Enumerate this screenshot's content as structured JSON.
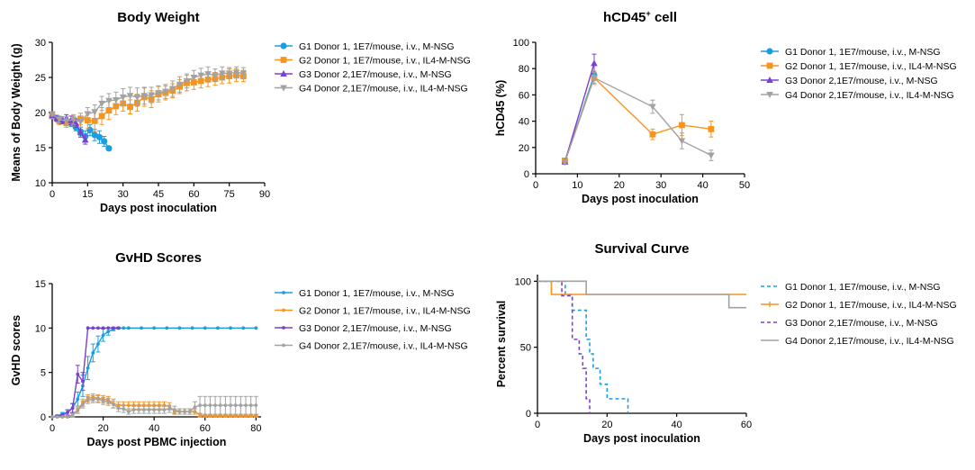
{
  "colors": {
    "G1": "#1a9ee0",
    "G2": "#f7941d",
    "G3": "#7b3fd3",
    "G4": "#a2a2a2"
  },
  "chart_data": [
    {
      "id": "bw",
      "type": "line",
      "title": "Body Weight",
      "xlabel": "Days post inoculation",
      "ylabel": "Means of Body Weight (g)",
      "xlim": [
        0,
        90
      ],
      "ylim": [
        10,
        30
      ],
      "xticks": [
        0,
        15,
        30,
        45,
        60,
        75,
        90
      ],
      "yticks": [
        10,
        15,
        20,
        25,
        30
      ],
      "legend_position": "right",
      "series": [
        {
          "key": "G1",
          "name": "G1 Donor 1, 1E7/mouse, i.v., M-NSG",
          "marker": "circle",
          "style": "solid",
          "x": [
            0,
            2,
            4,
            6,
            8,
            10,
            12,
            14,
            16,
            18,
            20,
            22,
            24
          ],
          "y": [
            19.5,
            19.1,
            18.9,
            18.6,
            18.5,
            17.9,
            17.3,
            16.6,
            17.5,
            16.8,
            16.5,
            15.9,
            14.9
          ],
          "err": [
            0.4,
            0.4,
            0.5,
            0.4,
            0.5,
            0.5,
            0.6,
            0.8,
            0.8,
            0.8,
            0.9,
            0.7,
            0.3
          ]
        },
        {
          "key": "G2",
          "name": "G2 Donor 1, 1E7/mouse, i.v., IL4-M-NSG",
          "marker": "square",
          "style": "solid",
          "x": [
            0,
            3,
            6,
            9,
            12,
            15,
            18,
            21,
            24,
            27,
            30,
            33,
            36,
            39,
            42,
            45,
            48,
            51,
            54,
            57,
            60,
            63,
            66,
            69,
            72,
            75,
            78,
            81
          ],
          "y": [
            19.5,
            18.8,
            18.5,
            18.8,
            19.1,
            18.9,
            18.8,
            19.5,
            20.3,
            20.9,
            21.3,
            20.8,
            21.4,
            22.2,
            21.9,
            22.6,
            22.8,
            23.1,
            23.7,
            24.2,
            24.3,
            24.5,
            24.7,
            24.8,
            25.0,
            25.2,
            25.3,
            25.2
          ],
          "err": [
            0.3,
            0.5,
            0.6,
            0.7,
            0.8,
            1.2,
            1.5,
            1.2,
            1.3,
            1.2,
            1.1,
            1.0,
            1.2,
            1.3,
            1.2,
            1.1,
            1.0,
            1.0,
            1.0,
            1.1,
            1.0,
            1.0,
            1.0,
            0.9,
            0.9,
            1.0,
            0.9,
            0.8
          ]
        },
        {
          "key": "G3",
          "name": "G3 Donor 2,1E7/mouse, i.v., M-NSG",
          "marker": "triangle",
          "style": "solid",
          "x": [
            0,
            2,
            4,
            6,
            8,
            10,
            12,
            14
          ],
          "y": [
            19.6,
            19.2,
            18.8,
            19.2,
            18.9,
            18.5,
            17.2,
            16.1
          ],
          "err": [
            0.3,
            0.4,
            0.4,
            0.5,
            0.6,
            0.6,
            0.7,
            0.6
          ]
        },
        {
          "key": "G4",
          "name": "G4 Donor 2,1E7/mouse, i.v., IL4-M-NSG",
          "marker": "triangle-down",
          "style": "solid",
          "x": [
            0,
            3,
            6,
            9,
            12,
            15,
            18,
            21,
            24,
            27,
            30,
            33,
            36,
            39,
            42,
            45,
            48,
            51,
            54,
            57,
            60,
            63,
            66,
            69,
            72,
            75,
            78,
            81
          ],
          "y": [
            19.8,
            19.0,
            18.8,
            19.0,
            18.7,
            19.8,
            20.1,
            21.3,
            21.7,
            21.8,
            22.2,
            22.4,
            22.2,
            22.4,
            22.5,
            22.8,
            23.0,
            23.4,
            24.0,
            24.5,
            25.0,
            25.3,
            25.5,
            25.3,
            25.6,
            25.6,
            25.7,
            25.6
          ],
          "err": [
            0.3,
            0.5,
            0.6,
            0.7,
            0.8,
            0.9,
            1.0,
            1.0,
            1.0,
            1.1,
            1.2,
            1.2,
            1.3,
            1.2,
            1.1,
            1.0,
            1.0,
            1.1,
            1.1,
            1.0,
            1.0,
            1.0,
            1.0,
            0.9,
            0.9,
            0.8,
            0.8,
            0.8
          ]
        }
      ]
    },
    {
      "id": "hcd",
      "type": "line",
      "title": "hCD45",
      "title_sup": "+",
      "title_suffix": " cell",
      "xlabel": "Days post inoculation",
      "ylabel": "hCD45 (%)",
      "xlim": [
        0,
        50
      ],
      "ylim": [
        0,
        100
      ],
      "xticks": [
        0,
        10,
        20,
        30,
        40,
        50
      ],
      "yticks": [
        0,
        20,
        40,
        60,
        80,
        100
      ],
      "legend_position": "right",
      "series": [
        {
          "key": "G1",
          "name": "G1 Donor 1, 1E7/mouse, i.v., M-NSG",
          "marker": "circle",
          "style": "solid",
          "x": [
            7,
            14
          ],
          "y": [
            9,
            75
          ],
          "err": [
            1.5,
            3
          ]
        },
        {
          "key": "G2",
          "name": "G2 Donor 1, 1E7/mouse, i.v., IL4-M-NSG",
          "marker": "square",
          "style": "solid",
          "x": [
            7,
            14,
            28,
            35,
            42
          ],
          "y": [
            10,
            73,
            30,
            37,
            34
          ],
          "err": [
            1.5,
            5,
            4,
            8,
            6
          ]
        },
        {
          "key": "G3",
          "name": "G3 Donor 2,1E7/mouse, i.v., M-NSG",
          "marker": "triangle",
          "style": "solid",
          "x": [
            7,
            14
          ],
          "y": [
            9,
            84
          ],
          "err": [
            1.5,
            7
          ]
        },
        {
          "key": "G4",
          "name": "G4 Donor 2,1E7/mouse, i.v., IL4-M-NSG",
          "marker": "triangle-down",
          "style": "solid",
          "x": [
            7,
            14,
            28,
            35,
            42
          ],
          "y": [
            9,
            73,
            51,
            25,
            14
          ],
          "err": [
            1.5,
            4,
            5,
            6,
            4
          ]
        }
      ]
    },
    {
      "id": "gvhd",
      "type": "line",
      "title": "GvHD Scores",
      "xlabel": "Days post PBMC injection",
      "ylabel": "GvHD scores",
      "xlim": [
        0,
        82
      ],
      "ylim": [
        0,
        15
      ],
      "xticks": [
        0,
        20,
        40,
        60,
        80
      ],
      "yticks": [
        0,
        5,
        10,
        15
      ],
      "legend_position": "right",
      "series": [
        {
          "key": "G1",
          "name": "G1 Donor 1, 1E7/mouse, i.v., M-NSG",
          "marker": "dot",
          "style": "solid",
          "x": [
            0,
            2,
            4,
            6,
            8,
            10,
            12,
            14,
            16,
            18,
            20,
            22,
            24,
            26,
            28,
            30,
            35,
            40,
            45,
            50,
            55,
            60,
            65,
            70,
            75,
            80
          ],
          "y": [
            0,
            0.1,
            0.3,
            0.5,
            1.0,
            2.0,
            3.5,
            5.5,
            7.2,
            8.2,
            9.2,
            9.6,
            9.9,
            10,
            10,
            10,
            10,
            10,
            10,
            10,
            10,
            10,
            10,
            10,
            10,
            10
          ],
          "err": [
            0,
            0.1,
            0.2,
            0.3,
            0.5,
            0.8,
            1.2,
            1.3,
            1.0,
            0.9,
            0.7,
            0.4,
            0.2,
            0.1,
            0,
            0,
            0,
            0,
            0,
            0,
            0,
            0,
            0,
            0,
            0,
            0
          ]
        },
        {
          "key": "G2",
          "name": "G2 Donor 1, 1E7/mouse, i.v., IL4-M-NSG",
          "marker": "dot",
          "style": "solid",
          "x": [
            0,
            2,
            4,
            6,
            8,
            10,
            12,
            14,
            16,
            18,
            20,
            22,
            24,
            26,
            28,
            30,
            32,
            34,
            36,
            38,
            40,
            42,
            44,
            46,
            48,
            50,
            52,
            54,
            56,
            58,
            60,
            62,
            64,
            66,
            68,
            70,
            72,
            74,
            76,
            78,
            80
          ],
          "y": [
            0,
            0,
            0,
            0,
            0.2,
            0.8,
            1.6,
            2.1,
            2.2,
            2.1,
            2.0,
            1.9,
            1.5,
            1.3,
            1.3,
            1.3,
            1.3,
            1.3,
            1.3,
            1.3,
            1.3,
            1.3,
            1.3,
            1.2,
            0.6,
            0.6,
            0.6,
            0.6,
            0.6,
            0.2,
            0.1,
            0.1,
            0.1,
            0.1,
            0.1,
            0.1,
            0.1,
            0.1,
            0.1,
            0.1,
            0.1
          ],
          "err": [
            0,
            0,
            0,
            0,
            0.2,
            0.4,
            0.4,
            0.4,
            0.4,
            0.4,
            0.4,
            0.4,
            0.5,
            0.4,
            0.4,
            0.4,
            0.4,
            0.4,
            0.4,
            0.4,
            0.4,
            0.4,
            0.4,
            0.4,
            0.3,
            0.3,
            0.3,
            0.3,
            0.3,
            0.2,
            0.1,
            0.1,
            0.1,
            0.1,
            0.1,
            0.1,
            0.1,
            0.1,
            0.1,
            0.1,
            0.1
          ]
        },
        {
          "key": "G3",
          "name": "G3 Donor 2,1E7/mouse, i.v., M-NSG",
          "marker": "dot",
          "style": "solid",
          "x": [
            0,
            2,
            4,
            6,
            8,
            10,
            12,
            14,
            16,
            18,
            20,
            22,
            24,
            26
          ],
          "y": [
            0,
            0.1,
            0.2,
            0.5,
            1.0,
            4.8,
            4.0,
            10,
            10,
            10,
            10,
            10,
            10,
            10
          ],
          "err": [
            0,
            0.1,
            0.1,
            0.3,
            0.5,
            1.0,
            1.0,
            0,
            0,
            0,
            0,
            0,
            0,
            0
          ]
        },
        {
          "key": "G4",
          "name": "G4 Donor 2,1E7/mouse, i.v., IL4-M-NSG",
          "marker": "dot",
          "style": "solid",
          "x": [
            0,
            2,
            4,
            6,
            8,
            10,
            12,
            14,
            16,
            18,
            20,
            22,
            24,
            26,
            28,
            30,
            32,
            34,
            36,
            38,
            40,
            42,
            44,
            46,
            48,
            50,
            52,
            54,
            56,
            58,
            60,
            62,
            64,
            66,
            68,
            70,
            72,
            74,
            76,
            78,
            80
          ],
          "y": [
            0,
            0,
            0,
            0,
            0.2,
            0.7,
            1.4,
            1.9,
            2.0,
            2.0,
            1.8,
            1.7,
            1.4,
            1.0,
            0.9,
            0.6,
            0.8,
            0.8,
            0.8,
            0.8,
            0.8,
            0.8,
            0.8,
            0.9,
            0.8,
            0.6,
            0.6,
            0.6,
            1.1,
            1.3,
            1.3,
            1.3,
            1.3,
            1.3,
            1.3,
            1.3,
            1.3,
            1.3,
            1.3,
            1.3,
            1.3
          ],
          "err": [
            0,
            0,
            0,
            0,
            0.2,
            0.3,
            0.4,
            0.4,
            0.4,
            0.4,
            0.4,
            0.4,
            0.4,
            0.4,
            0.4,
            0.3,
            0.4,
            0.4,
            0.4,
            0.4,
            0.4,
            0.4,
            0.4,
            0.4,
            0.4,
            0.3,
            0.3,
            0.3,
            0.6,
            1.0,
            1.0,
            1.0,
            1.0,
            1.0,
            1.0,
            1.0,
            1.0,
            1.0,
            1.0,
            1.0,
            1.0
          ]
        }
      ]
    },
    {
      "id": "surv",
      "type": "step",
      "title": "Survival Curve",
      "xlabel": "Days post inoculation",
      "ylabel": "Percent survival",
      "xlim": [
        0,
        60
      ],
      "ylim": [
        0,
        105
      ],
      "xticks": [
        0,
        20,
        40,
        60
      ],
      "yticks": [
        0,
        50,
        100
      ],
      "legend_position": "right",
      "series": [
        {
          "key": "G1",
          "name": "G1 Donor 1, 1E7/mouse, i.v., M-NSG",
          "marker": "none",
          "style": "dashed",
          "x": [
            0,
            8,
            10,
            14,
            15,
            16,
            18,
            20,
            26
          ],
          "y": [
            100,
            90,
            78,
            56,
            45,
            34,
            22,
            11,
            0
          ]
        },
        {
          "key": "G2",
          "name": "G2 Donor 1, 1E7/mouse, i.v., IL4-M-NSG",
          "marker": "tick",
          "style": "solid",
          "x": [
            0,
            4,
            60
          ],
          "y": [
            100,
            90,
            90
          ]
        },
        {
          "key": "G3",
          "name": "G3 Donor 2,1E7/mouse, i.v., M-NSG",
          "marker": "none",
          "style": "dashed",
          "x": [
            0,
            7,
            10,
            12,
            13,
            14,
            15
          ],
          "y": [
            100,
            89,
            56,
            45,
            34,
            11,
            0
          ]
        },
        {
          "key": "G4",
          "name": "G4 Donor 2,1E7/mouse, i.v., IL4-M-NSG",
          "marker": "none",
          "style": "solid",
          "x": [
            0,
            14,
            55,
            60
          ],
          "y": [
            100,
            90,
            80,
            80
          ]
        }
      ]
    }
  ]
}
